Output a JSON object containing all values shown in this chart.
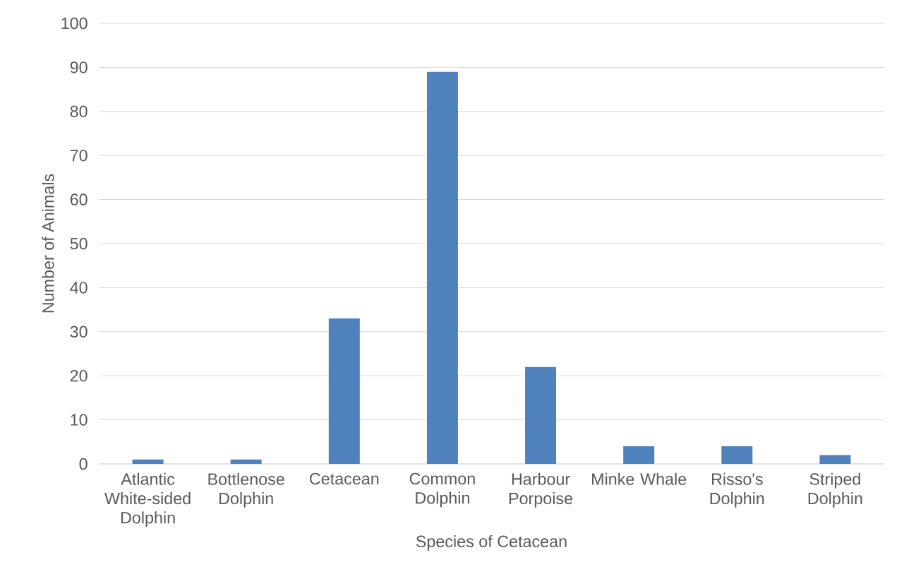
{
  "chart_data": {
    "type": "bar",
    "xlabel": "Species of Cetacean",
    "ylabel": "Number of Animals",
    "categories": [
      "Atlantic White-sided Dolphin",
      "Bottlenose Dolphin",
      "Cetacean",
      "Common Dolphin",
      "Harbour Porpoise",
      "Minke Whale",
      "Risso's Dolphin",
      "Striped Dolphin"
    ],
    "values": [
      1,
      1,
      33,
      89,
      22,
      4,
      4,
      2
    ],
    "color": "#4f81bd",
    "ylim": [
      0,
      100
    ],
    "yticks": [
      0,
      10,
      20,
      30,
      40,
      50,
      60,
      70,
      80,
      90,
      100
    ],
    "grid": "y"
  }
}
